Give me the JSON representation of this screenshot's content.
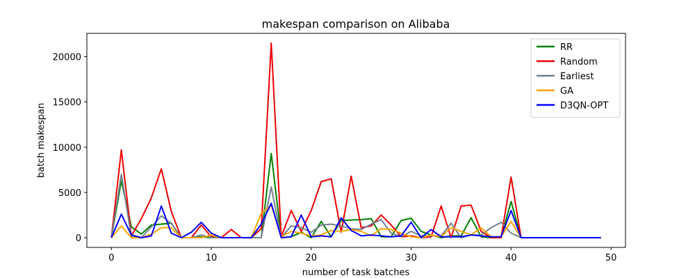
{
  "chart_data": {
    "type": "line",
    "title": "makespan comparison on Alibaba",
    "xlabel": "number of task batches",
    "ylabel": "batch makespan",
    "xlim": [
      -2.45,
      51.45
    ],
    "ylim": [
      -1075,
      22575
    ],
    "xticks": [
      0,
      10,
      20,
      30,
      40,
      50
    ],
    "yticks": [
      0,
      5000,
      10000,
      15000,
      20000
    ],
    "grid": false,
    "legend_position": "top-right",
    "x": [
      0,
      1,
      2,
      3,
      4,
      5,
      6,
      7,
      8,
      9,
      10,
      11,
      12,
      13,
      14,
      15,
      16,
      17,
      18,
      19,
      20,
      21,
      22,
      23,
      24,
      25,
      26,
      27,
      28,
      29,
      30,
      31,
      32,
      33,
      34,
      35,
      36,
      37,
      38,
      39,
      40,
      41,
      42,
      43,
      44,
      45,
      46,
      47,
      48,
      49
    ],
    "series": [
      {
        "name": "RR",
        "color": "#008000",
        "values": [
          0,
          6300,
          1200,
          400,
          1400,
          1500,
          1600,
          0,
          0,
          100,
          0,
          0,
          0,
          0,
          0,
          0,
          9300,
          0,
          100,
          600,
          0,
          1800,
          100,
          1900,
          1950,
          2000,
          2100,
          100,
          100,
          1900,
          2150,
          700,
          300,
          0,
          200,
          200,
          2200,
          100,
          0,
          0,
          4000,
          0,
          0,
          0,
          0,
          0,
          0,
          0,
          0,
          0
        ]
      },
      {
        "name": "Random",
        "color": "#ee0000",
        "values": [
          0,
          9700,
          200,
          2100,
          4400,
          7600,
          2900,
          0,
          0,
          1400,
          100,
          0,
          900,
          0,
          0,
          1000,
          21500,
          100,
          3000,
          700,
          3000,
          6200,
          6500,
          600,
          6800,
          1100,
          1300,
          2500,
          1400,
          100,
          200,
          0,
          100,
          3500,
          0,
          3500,
          3600,
          700,
          0,
          0,
          6700,
          0,
          0,
          0,
          0,
          0,
          0,
          0,
          0,
          0
        ]
      },
      {
        "name": "Earliest",
        "color": "#708090",
        "values": [
          0,
          7000,
          100,
          0,
          1200,
          2400,
          1600,
          0,
          0,
          300,
          0,
          0,
          0,
          0,
          0,
          0,
          5600,
          0,
          1300,
          1100,
          600,
          1400,
          1500,
          1300,
          1000,
          900,
          1500,
          2000,
          500,
          100,
          700,
          200,
          200,
          200,
          1600,
          0,
          300,
          300,
          1100,
          1700,
          500,
          0,
          0,
          0,
          0,
          0,
          0,
          0,
          0,
          0
        ]
      },
      {
        "name": "GA",
        "color": "#ffa500",
        "values": [
          0,
          1300,
          0,
          0,
          400,
          1100,
          1100,
          0,
          0,
          0,
          300,
          0,
          0,
          0,
          0,
          2700,
          3600,
          100,
          700,
          500,
          200,
          300,
          800,
          700,
          900,
          700,
          200,
          1000,
          900,
          500,
          100,
          0,
          300,
          100,
          1100,
          700,
          300,
          1100,
          100,
          100,
          1800,
          0,
          0,
          0,
          0,
          0,
          0,
          0,
          0,
          0
        ]
      },
      {
        "name": "D3QN-OPT",
        "color": "#0000ff",
        "values": [
          0,
          2600,
          300,
          0,
          200,
          3500,
          500,
          0,
          600,
          1700,
          500,
          0,
          0,
          0,
          0,
          1500,
          3800,
          0,
          100,
          2500,
          100,
          200,
          100,
          2200,
          800,
          200,
          300,
          200,
          100,
          200,
          1700,
          0,
          900,
          100,
          100,
          100,
          300,
          200,
          100,
          100,
          3000,
          0,
          0,
          0,
          0,
          0,
          0,
          0,
          0,
          0
        ]
      }
    ]
  }
}
